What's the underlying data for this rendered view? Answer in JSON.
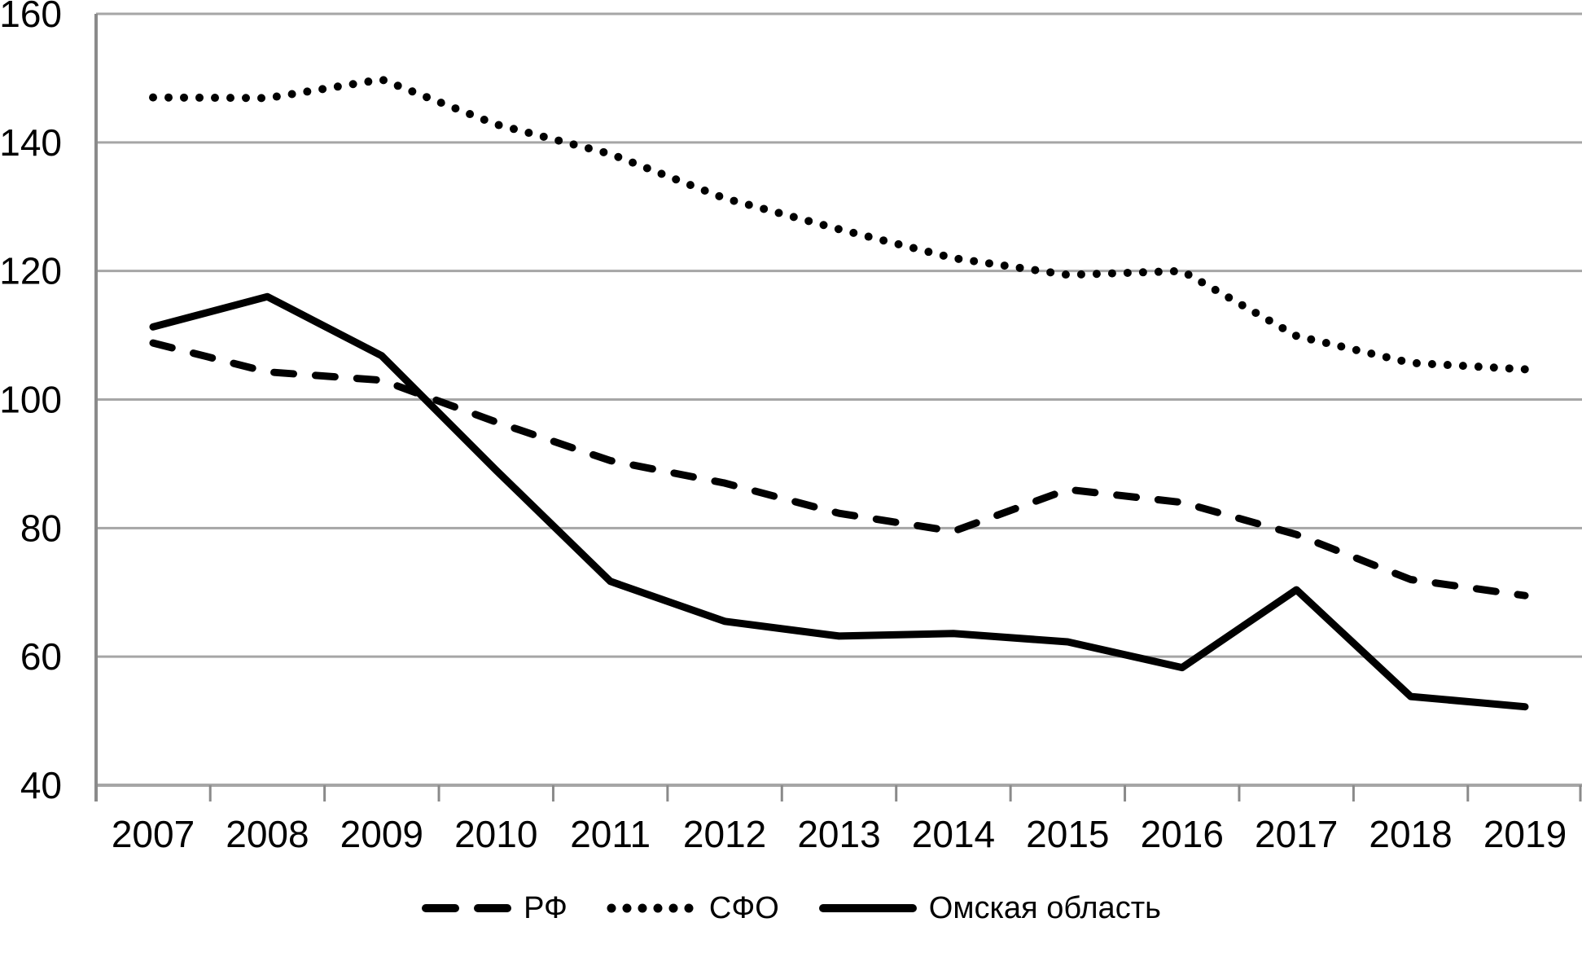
{
  "chart": {
    "background": "#ffffff",
    "text_color": "#000000",
    "gridline_color": "#a6a6a6",
    "axis_color": "#8a8a8a",
    "series_color": "#000000"
  },
  "chart_data": {
    "type": "line",
    "title": "",
    "xlabel": "",
    "ylabel": "",
    "categories": [
      "2007",
      "2008",
      "2009",
      "2010",
      "2011",
      "2012",
      "2013",
      "2014",
      "2015",
      "2016",
      "2017",
      "2018",
      "2019"
    ],
    "series": [
      {
        "id": "rf",
        "name": "РФ",
        "line_style": "dashed",
        "values": [
          108.8,
          104.3,
          103.0,
          96.5,
          90.5,
          87.0,
          82.3,
          79.5,
          86.0,
          84.0,
          79.0,
          72.0,
          69.5
        ]
      },
      {
        "id": "sfo",
        "name": "СФО",
        "line_style": "dotted",
        "values": [
          147.0,
          146.9,
          149.8,
          142.8,
          138.2,
          131.3,
          126.5,
          122.0,
          119.4,
          120.0,
          109.9,
          105.7,
          104.7
        ]
      },
      {
        "id": "omsk",
        "name": "Омская область",
        "line_style": "solid",
        "values": [
          111.3,
          116.0,
          106.8,
          89.0,
          71.7,
          65.5,
          63.2,
          63.6,
          62.3,
          58.3,
          70.4,
          53.8,
          52.2
        ]
      }
    ],
    "ylim": [
      40,
      160
    ],
    "y_ticks": [
      40,
      60,
      80,
      100,
      120,
      140,
      160
    ],
    "grid": "horizontal",
    "legend_position": "bottom"
  }
}
